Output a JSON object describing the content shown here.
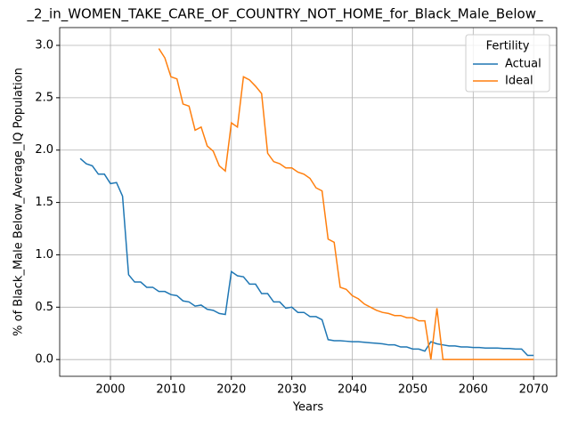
{
  "chart_data": {
    "type": "line",
    "title": "_2_in_WOMEN_TAKE_CARE_OF_COUNTRY_NOT_HOME_for_Black_Male_Below_",
    "xlabel": "Years",
    "ylabel": "% of Black_Male Below_Average_IQ Population",
    "x": [
      1995,
      1996,
      1997,
      1998,
      1999,
      2000,
      2001,
      2002,
      2003,
      2004,
      2005,
      2006,
      2007,
      2008,
      2009,
      2010,
      2011,
      2012,
      2013,
      2014,
      2015,
      2016,
      2017,
      2018,
      2019,
      2020,
      2021,
      2022,
      2023,
      2024,
      2025,
      2026,
      2027,
      2028,
      2029,
      2030,
      2031,
      2032,
      2033,
      2034,
      2035,
      2036,
      2037,
      2038,
      2039,
      2040,
      2041,
      2042,
      2043,
      2044,
      2045,
      2046,
      2047,
      2048,
      2049,
      2050,
      2051,
      2052,
      2053,
      2054,
      2055,
      2056,
      2057,
      2058,
      2059,
      2060,
      2061,
      2062,
      2063,
      2064,
      2065,
      2066,
      2067,
      2068,
      2069,
      2070
    ],
    "series": [
      {
        "name": "Actual",
        "color": "#1f77b4",
        "values": [
          1.92,
          1.87,
          1.85,
          1.77,
          1.77,
          1.68,
          1.69,
          1.56,
          0.81,
          0.74,
          0.74,
          0.69,
          0.69,
          0.65,
          0.65,
          0.62,
          0.61,
          0.56,
          0.55,
          0.51,
          0.52,
          0.48,
          0.47,
          0.44,
          0.43,
          0.84,
          0.8,
          0.79,
          0.72,
          0.72,
          0.63,
          0.63,
          0.55,
          0.55,
          0.49,
          0.5,
          0.45,
          0.45,
          0.41,
          0.41,
          0.38,
          0.19,
          0.18,
          0.18,
          0.175,
          0.17,
          0.17,
          0.165,
          0.16,
          0.155,
          0.15,
          0.14,
          0.14,
          0.12,
          0.12,
          0.1,
          0.1,
          0.08,
          0.17,
          0.15,
          0.14,
          0.13,
          0.13,
          0.12,
          0.12,
          0.115,
          0.115,
          0.11,
          0.11,
          0.11,
          0.105,
          0.105,
          0.1,
          0.1,
          0.04,
          0.04
        ]
      },
      {
        "name": "Ideal",
        "color": "#ff7f0e",
        "values": [
          null,
          null,
          null,
          null,
          null,
          null,
          null,
          null,
          null,
          null,
          null,
          null,
          null,
          2.97,
          2.88,
          2.7,
          2.68,
          2.44,
          2.42,
          2.19,
          2.22,
          2.04,
          1.99,
          1.85,
          1.8,
          2.26,
          2.22,
          2.7,
          2.67,
          2.61,
          2.54,
          1.97,
          1.89,
          1.87,
          1.83,
          1.83,
          1.79,
          1.77,
          1.73,
          1.64,
          1.61,
          1.15,
          1.12,
          0.69,
          0.67,
          0.61,
          0.58,
          0.53,
          0.5,
          0.47,
          0.45,
          0.44,
          0.42,
          0.42,
          0.4,
          0.4,
          0.37,
          0.37,
          0.0,
          0.49,
          0,
          0,
          0,
          0,
          0,
          0,
          0,
          0,
          0,
          0,
          0,
          0,
          0,
          0,
          0,
          0
        ]
      }
    ],
    "xlim": [
      1991.6,
      2073.8
    ],
    "ylim": [
      -0.16,
      3.17
    ],
    "xticks": [
      2000,
      2010,
      2020,
      2030,
      2040,
      2050,
      2060,
      2070
    ],
    "yticks": [
      {
        "value": 0,
        "label": "0.0"
      },
      0.5,
      {
        "value": 1,
        "label": "1.0"
      },
      1.5,
      {
        "value": 2,
        "label": "2.0"
      },
      2.5,
      {
        "value": 3,
        "label": "3.0"
      }
    ],
    "grid": true,
    "legend_title": "Fertility",
    "legend_loc": "upper right"
  }
}
